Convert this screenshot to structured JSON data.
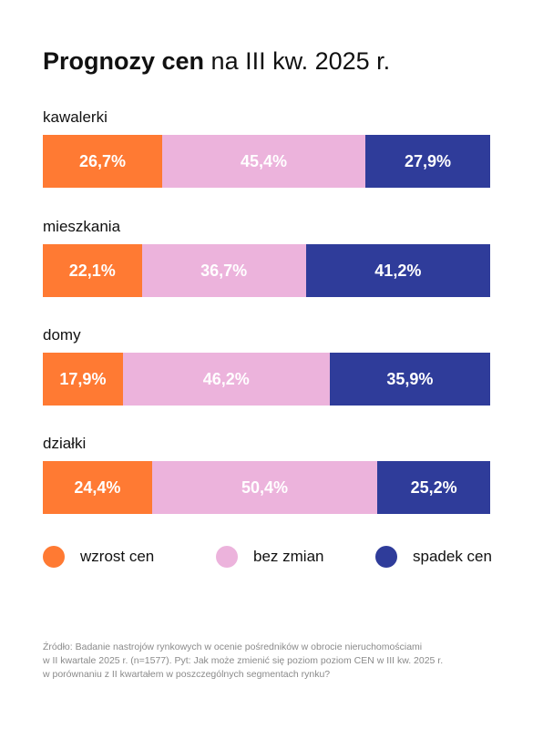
{
  "title": {
    "bold": "Prognozy cen",
    "regular": "na III kw. 2025 r."
  },
  "colors": {
    "wzrost": "#ff7a33",
    "bez_zmian": "#ecb3dc",
    "spadek": "#2f3c9a"
  },
  "chart_data": {
    "type": "bar",
    "stacked": true,
    "orientation": "horizontal",
    "title": "Prognozy cen na III kw. 2025 r.",
    "unit": "%",
    "categories": [
      "kawalerki",
      "mieszkania",
      "domy",
      "działki"
    ],
    "series": [
      {
        "name": "wzrost cen",
        "values": [
          26.7,
          22.1,
          17.9,
          24.4
        ],
        "labels": [
          "26,7%",
          "22,1%",
          "17,9%",
          "24,4%"
        ],
        "color": "#ff7a33"
      },
      {
        "name": "bez zmian",
        "values": [
          45.4,
          36.7,
          46.2,
          50.4
        ],
        "labels": [
          "45,4%",
          "36,7%",
          "46,2%",
          "50,4%"
        ],
        "color": "#ecb3dc"
      },
      {
        "name": "spadek cen",
        "values": [
          27.9,
          41.2,
          35.9,
          25.2
        ],
        "labels": [
          "27,9%",
          "41,2%",
          "35,9%",
          "25,2%"
        ],
        "color": "#2f3c9a"
      }
    ],
    "legend_position": "bottom"
  },
  "source_lines": [
    "Źródło: Badanie nastrojów rynkowych w ocenie pośredników w obrocie nieruchomościami",
    "w II kwartale 2025 r. (n=1577). Pyt: Jak może zmienić się poziom poziom CEN w III kw. 2025 r.",
    "w porównaniu z II kwartałem w poszczególnych segmentach rynku?"
  ]
}
